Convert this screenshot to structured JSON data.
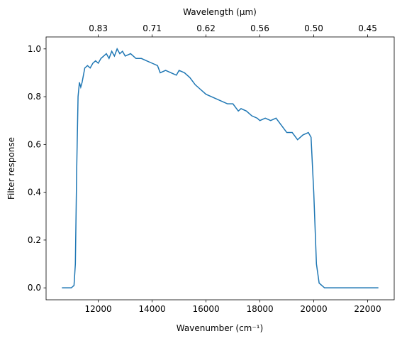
{
  "chart_data": {
    "type": "line",
    "xlabel": "Wavenumber (cm⁻¹)",
    "ylabel": "Filter response",
    "x2label": "Wavelength (μm)",
    "x": [
      10650,
      11000,
      11100,
      11150,
      11200,
      11250,
      11300,
      11350,
      11400,
      11500,
      11600,
      11700,
      11800,
      11900,
      12000,
      12100,
      12200,
      12300,
      12400,
      12500,
      12600,
      12700,
      12800,
      12900,
      13000,
      13200,
      13400,
      13600,
      13800,
      14000,
      14200,
      14300,
      14500,
      14700,
      14900,
      15000,
      15200,
      15400,
      15600,
      15800,
      16000,
      16200,
      16400,
      16600,
      16800,
      17000,
      17200,
      17300,
      17500,
      17700,
      17900,
      18000,
      18200,
      18400,
      18600,
      18800,
      19000,
      19200,
      19400,
      19600,
      19800,
      19900,
      20000,
      20100,
      20200,
      20400,
      21000,
      22400
    ],
    "series": [
      {
        "color": "#1f77b4",
        "values": [
          0.0,
          0.0,
          0.01,
          0.1,
          0.5,
          0.8,
          0.86,
          0.84,
          0.86,
          0.92,
          0.93,
          0.92,
          0.94,
          0.95,
          0.94,
          0.96,
          0.97,
          0.98,
          0.96,
          0.99,
          0.97,
          1.0,
          0.98,
          0.99,
          0.97,
          0.98,
          0.96,
          0.96,
          0.95,
          0.94,
          0.93,
          0.9,
          0.91,
          0.9,
          0.89,
          0.91,
          0.9,
          0.88,
          0.85,
          0.83,
          0.81,
          0.8,
          0.79,
          0.78,
          0.77,
          0.77,
          0.74,
          0.75,
          0.74,
          0.72,
          0.71,
          0.7,
          0.71,
          0.7,
          0.71,
          0.68,
          0.65,
          0.65,
          0.62,
          0.64,
          0.65,
          0.63,
          0.4,
          0.1,
          0.02,
          0.0,
          0.0,
          0.0
        ]
      }
    ],
    "xlim": [
      10063,
      22987
    ],
    "xticks": [
      12000,
      14000,
      16000,
      18000,
      20000,
      22000
    ],
    "ylim": [
      -0.05,
      1.05
    ],
    "yticks": [
      {
        "value": 0,
        "label": "0.0"
      },
      0.2,
      0.4,
      0.6,
      0.8,
      {
        "value": 1,
        "label": "1.0"
      }
    ],
    "x2lim": [
      0.9937,
      0.435
    ],
    "x2ticks": [
      {
        "value": 0.8333,
        "label": "0.83"
      },
      {
        "value": 0.7143,
        "label": "0.71"
      },
      {
        "value": 0.625,
        "label": "0.62"
      },
      {
        "value": 0.5556,
        "label": "0.56"
      },
      {
        "value": 0.5,
        "label": "0.50"
      },
      {
        "value": 0.4545,
        "label": "0.45"
      }
    ],
    "grid": false
  }
}
